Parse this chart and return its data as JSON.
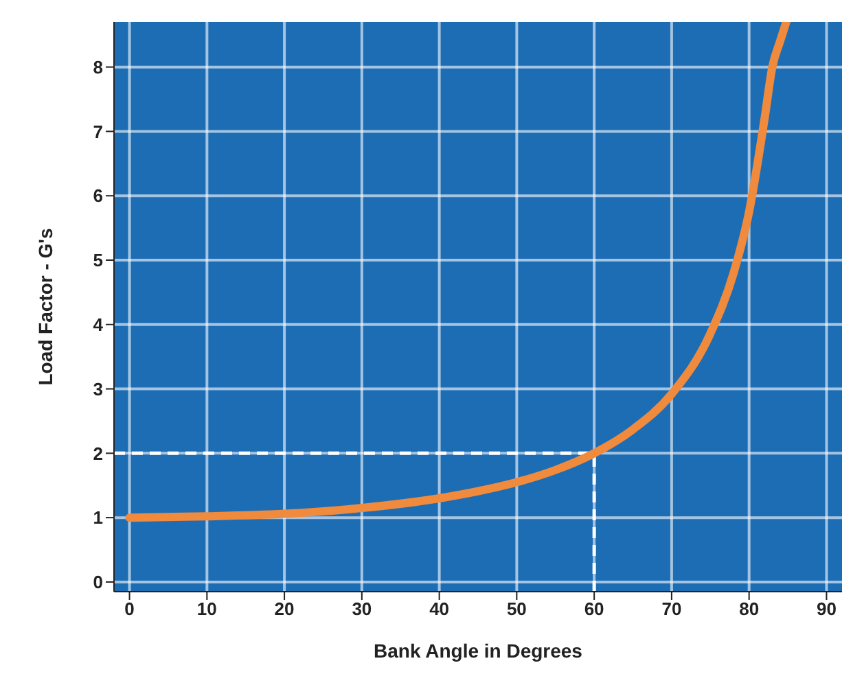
{
  "chart_data": {
    "type": "line",
    "xlabel": "Bank Angle in Degrees",
    "ylabel": "Load Factor - G's",
    "x": [
      0,
      10,
      20,
      30,
      40,
      45,
      50,
      55,
      60,
      65,
      70,
      75,
      78,
      80,
      82,
      83,
      84,
      84.8
    ],
    "series": [
      {
        "color": "#f08a3c",
        "values": [
          1,
          1.02,
          1.06,
          1.15,
          1.3,
          1.41,
          1.55,
          1.74,
          2,
          2.37,
          2.92,
          3.86,
          4.8,
          5.75,
          7.2,
          8.0,
          8.4,
          8.7
        ]
      }
    ],
    "xlim": [
      -2,
      92
    ],
    "xticks": [
      0,
      10,
      20,
      30,
      40,
      50,
      60,
      70,
      80,
      90
    ],
    "ylim": [
      -0.15,
      8.7
    ],
    "yticks": [
      0,
      1,
      2,
      3,
      4,
      5,
      6,
      7,
      8
    ],
    "grid": true,
    "marker": "none",
    "line_style": "solid",
    "ref_lines": [
      {
        "axis": "y",
        "value": 2,
        "color": "#ffffff",
        "line_style": "dashed"
      },
      {
        "axis": "x",
        "value": 60,
        "color": "#ffffff",
        "line_style": "dashed"
      }
    ]
  }
}
